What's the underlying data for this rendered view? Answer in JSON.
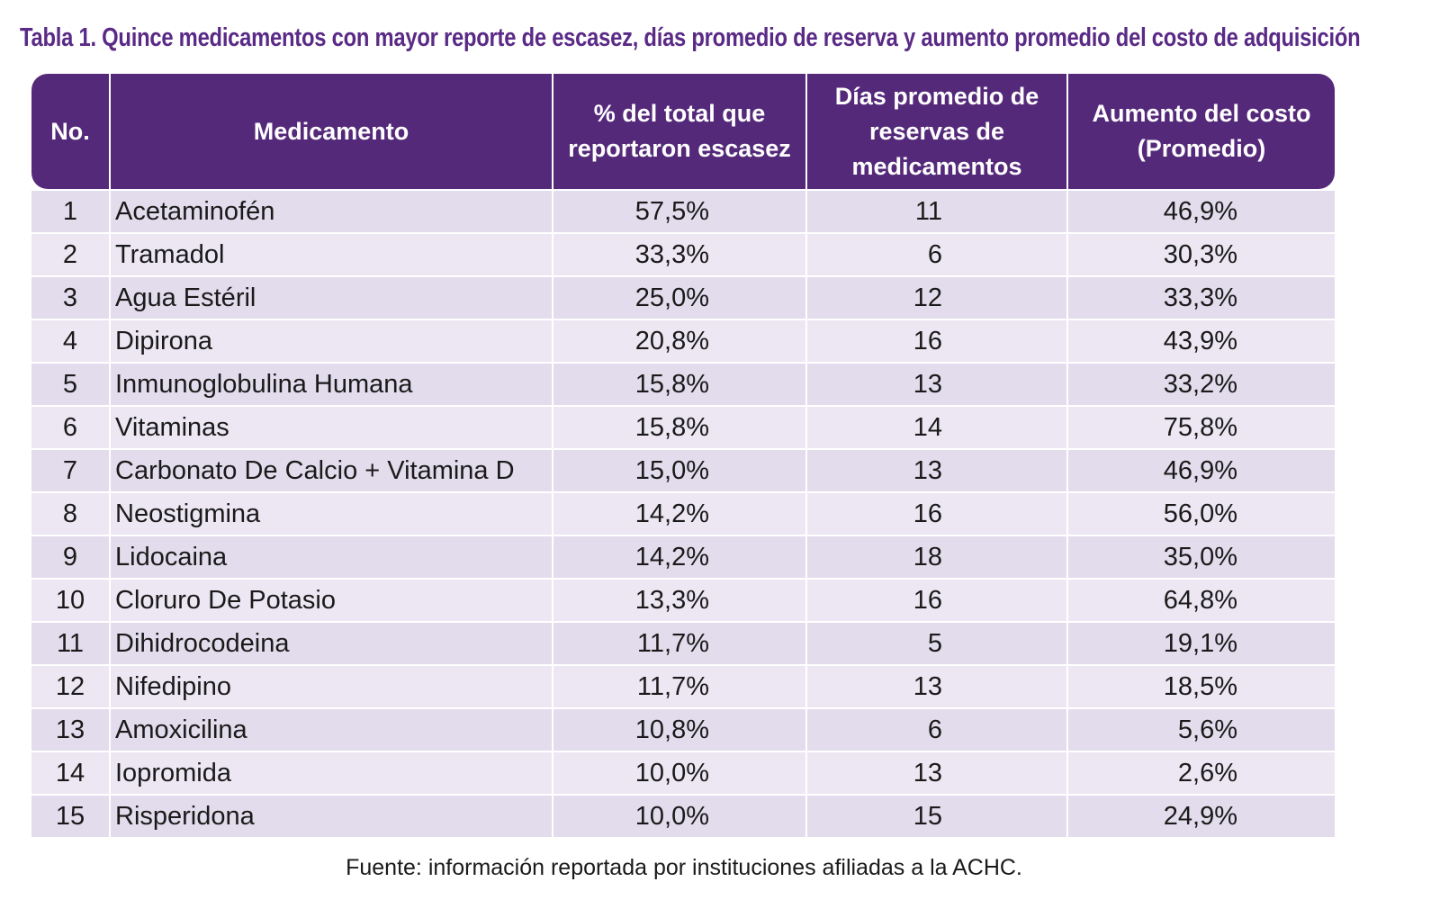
{
  "title": "Tabla 1. Quince medicamentos con mayor reporte de escasez, días promedio de reserva y aumento promedio del costo de adquisición",
  "colors": {
    "header_bg": "#55297a",
    "title": "#5a2a86",
    "row_odd": "#e2dcec",
    "row_even": "#ece7f3"
  },
  "table": {
    "headers": [
      "No.",
      "Medicamento",
      "% del total que reportaron escasez",
      "Días promedio de reservas de medicamentos",
      "Aumento del costo (Promedio)"
    ],
    "rows": [
      [
        "1",
        "Acetaminofén",
        "57,5%",
        "11",
        "46,9%"
      ],
      [
        "2",
        "Tramadol",
        "33,3%",
        "6",
        "30,3%"
      ],
      [
        "3",
        "Agua Estéril",
        "25,0%",
        "12",
        "33,3%"
      ],
      [
        "4",
        "Dipirona",
        "20,8%",
        "16",
        "43,9%"
      ],
      [
        "5",
        "Inmunoglobulina Humana",
        "15,8%",
        "13",
        "33,2%"
      ],
      [
        "6",
        "Vitaminas",
        "15,8%",
        "14",
        "75,8%"
      ],
      [
        "7",
        "Carbonato De Calcio + Vitamina D",
        "15,0%",
        "13",
        "46,9%"
      ],
      [
        "8",
        "Neostigmina",
        "14,2%",
        "16",
        "56,0%"
      ],
      [
        "9",
        "Lidocaina",
        "14,2%",
        "18",
        "35,0%"
      ],
      [
        "10",
        "Cloruro De Potasio",
        "13,3%",
        "16",
        "64,8%"
      ],
      [
        "11",
        "Dihidrocodeina",
        "11,7%",
        "5",
        "19,1%"
      ],
      [
        "12",
        "Nifedipino",
        "11,7%",
        "13",
        "18,5%"
      ],
      [
        "13",
        "Amoxicilina",
        "10,8%",
        "6",
        "5,6%"
      ],
      [
        "14",
        "Iopromida",
        "10,0%",
        "13",
        "2,6%"
      ],
      [
        "15",
        "Risperidona",
        "10,0%",
        "15",
        "24,9%"
      ]
    ]
  },
  "footer": "Fuente: información reportada por instituciones afiliadas a la ACHC."
}
